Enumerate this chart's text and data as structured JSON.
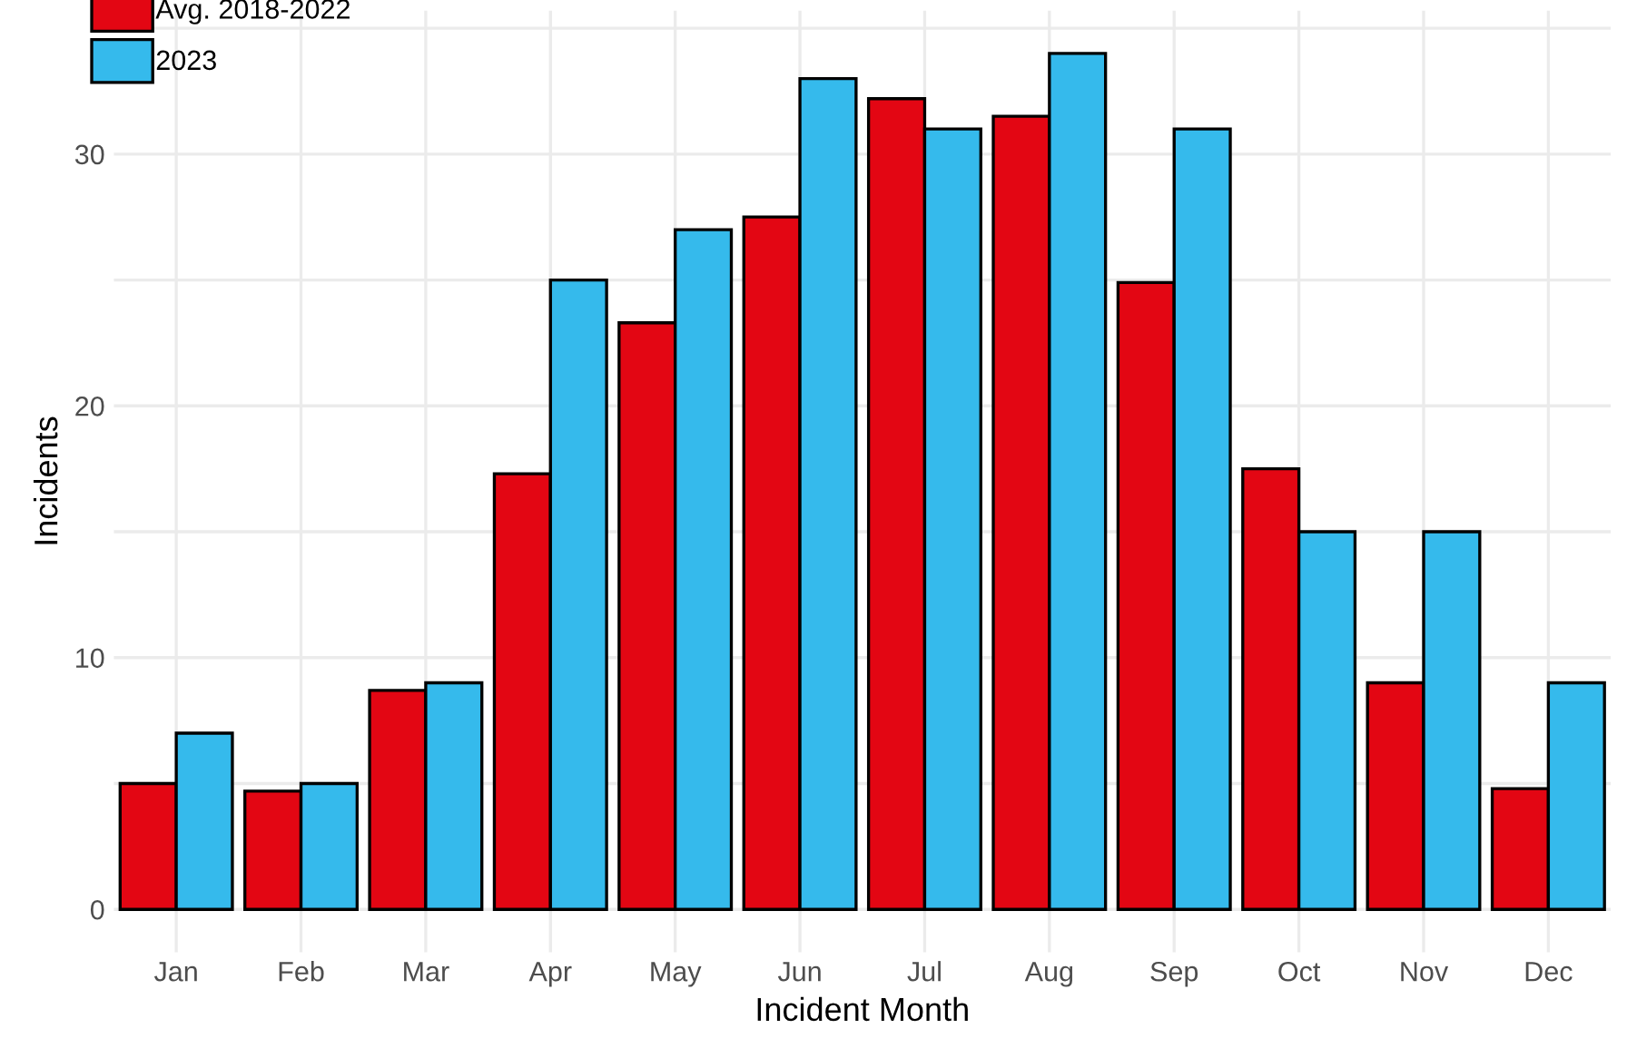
{
  "chart_data": {
    "type": "bar",
    "xlabel": "Incident Month",
    "ylabel": "Incidents",
    "categories": [
      "Jan",
      "Feb",
      "Mar",
      "Apr",
      "May",
      "Jun",
      "Jul",
      "Aug",
      "Sep",
      "Oct",
      "Nov",
      "Dec"
    ],
    "series": [
      {
        "name": "Avg. 2018-2022",
        "color": "#e30613",
        "values": [
          5,
          4.7,
          8.7,
          17.3,
          23.3,
          27.5,
          32.2,
          31.5,
          24.9,
          17.5,
          9,
          4.8
        ]
      },
      {
        "name": "2023",
        "color": "#35baec",
        "values": [
          7,
          5,
          9,
          25,
          27,
          33,
          31,
          34,
          31,
          15,
          15,
          9
        ]
      }
    ],
    "ylim": [
      -1.7,
      35.7
    ],
    "yticks": [
      0,
      {
        "value": 5,
        "label": null
      },
      10,
      {
        "value": 15,
        "label": null
      },
      20,
      {
        "value": 25,
        "label": null
      },
      30,
      {
        "value": 35,
        "label": null
      }
    ],
    "grid": true,
    "legend": "top left"
  }
}
